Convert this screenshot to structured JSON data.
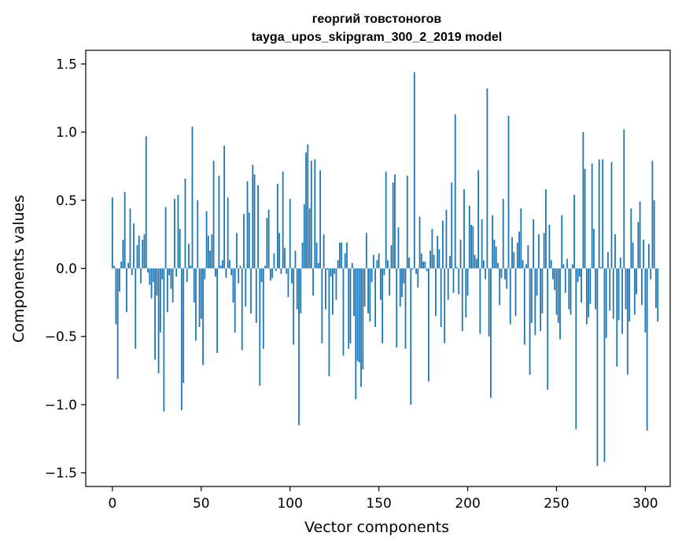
{
  "chart_data": {
    "type": "bar",
    "title": [
      "георгий товстоногов",
      "tayga_upos_skipgram_300_2_2019 model"
    ],
    "xlabel": "Vector components",
    "ylabel": "Components values",
    "xlim": [
      -15,
      314
    ],
    "ylim": [
      -1.6,
      1.6
    ],
    "xticks": [
      0,
      50,
      100,
      150,
      200,
      250,
      300
    ],
    "xtick_labels": [
      "0",
      "50",
      "100",
      "150",
      "200",
      "250",
      "300"
    ],
    "yticks": [
      -1.5,
      -1.0,
      -0.5,
      0.0,
      0.5,
      1.0,
      1.5
    ],
    "ytick_labels": [
      "−1.5",
      "−1.0",
      "−0.5",
      "0.0",
      "0.5",
      "1.0",
      "1.5"
    ],
    "bar_color": "#1f77b4",
    "values": [
      0.52,
      0.02,
      -0.41,
      -0.81,
      -0.17,
      0.05,
      0.21,
      0.56,
      -0.32,
      0.04,
      0.44,
      -0.05,
      0.33,
      -0.59,
      0.17,
      0.24,
      -0.11,
      0.21,
      0.25,
      0.97,
      -0.03,
      -0.12,
      -0.22,
      -0.1,
      -0.67,
      -0.2,
      -0.77,
      -0.47,
      -0.08,
      -1.05,
      0.45,
      -0.32,
      -0.05,
      -0.15,
      -0.25,
      0.51,
      -0.06,
      0.54,
      0.29,
      -1.04,
      -0.84,
      0.66,
      -0.1,
      0.18,
      0.02,
      1.04,
      -0.25,
      -0.53,
      0.5,
      -0.43,
      -0.37,
      -0.71,
      -0.08,
      0.42,
      0.24,
      0.13,
      0.25,
      0.79,
      -0.06,
      -0.62,
      0.68,
      0.02,
      0.06,
      0.9,
      -0.07,
      0.52,
      0.06,
      -0.05,
      -0.25,
      -0.47,
      0.26,
      -0.11,
      0.02,
      -0.6,
      0.4,
      -0.28,
      0.64,
      0.41,
      -0.33,
      0.76,
      0.69,
      -0.4,
      0.61,
      -0.86,
      -0.1,
      -0.59,
      0.02,
      0.37,
      0.43,
      -0.09,
      -0.07,
      0.11,
      -0.02,
      0.62,
      0.26,
      -0.04,
      0.71,
      0.15,
      -0.04,
      -0.21,
      0.51,
      -0.11,
      -0.56,
      0.13,
      -0.3,
      -1.15,
      -0.33,
      0.19,
      0.47,
      0.85,
      0.91,
      0.44,
      0.79,
      -0.2,
      0.8,
      0.19,
      0.04,
      0.72,
      -0.55,
      0.25,
      -0.3,
      -0.01,
      -0.79,
      -0.06,
      -0.34,
      -0.04,
      -0.23,
      0.06,
      0.19,
      0.19,
      -0.64,
      0.11,
      0.19,
      -0.59,
      -0.55,
      0.04,
      -0.35,
      -0.96,
      -0.68,
      -0.69,
      -0.87,
      -0.74,
      -0.28,
      0.26,
      -0.33,
      -0.39,
      -0.1,
      0.1,
      -0.43,
      0.06,
      0.11,
      -0.23,
      -0.55,
      -0.05,
      0.71,
      0.06,
      -0.2,
      0.17,
      0.63,
      0.69,
      -0.58,
      0.3,
      -0.28,
      -0.21,
      -0.11,
      -0.59,
      0.68,
      0.08,
      -1.0,
      -0.01,
      1.44,
      -0.04,
      -0.14,
      0.38,
      0.11,
      0.05,
      0.05,
      -0.02,
      -0.83,
      0.13,
      0.29,
      0.1,
      -0.35,
      0.24,
      0.14,
      -0.43,
      0.35,
      -0.55,
      0.43,
      -0.23,
      0.09,
      0.63,
      -0.18,
      1.13,
      0.01,
      -0.19,
      0.21,
      -0.46,
      0.58,
      -0.36,
      -0.2,
      0.46,
      0.32,
      0.31,
      0.1,
      0.07,
      0.72,
      -0.48,
      0.36,
      0.06,
      -0.08,
      1.32,
      -0.5,
      -0.95,
      0.39,
      0.21,
      0.16,
      0.04,
      -0.27,
      -0.07,
      0.51,
      -0.08,
      -0.15,
      1.12,
      -0.41,
      0.23,
      0.12,
      -0.35,
      0.19,
      0.27,
      0.44,
      0.06,
      -0.56,
      0.03,
      0.17,
      -0.78,
      -0.4,
      0.36,
      -0.49,
      -0.2,
      0.25,
      -0.46,
      -0.33,
      0.26,
      0.58,
      -0.89,
      0.32,
      0.06,
      -0.08,
      -0.16,
      -0.34,
      -0.4,
      -0.52,
      0.39,
      0.03,
      -0.18,
      0.07,
      -0.3,
      -0.34,
      0.03,
      0.54,
      -1.18,
      -0.1,
      -0.06,
      -0.25,
      1.0,
      0.73,
      -0.41,
      -0.36,
      -0.26,
      0.77,
      0.29,
      -0.3,
      -1.45,
      0.8,
      0.01,
      0.8,
      -1.42,
      -0.51,
      0.12,
      -0.31,
      0.78,
      -0.37,
      0.25,
      -0.72,
      -0.38,
      0.08,
      -0.48,
      1.02,
      -0.3,
      -0.78,
      -0.39,
      0.44,
      0.19,
      -0.34,
      -0.19,
      0.34,
      0.49,
      -0.27,
      0.21,
      -0.47,
      -1.19,
      0.18,
      -0.08,
      0.79,
      0.5,
      -0.29,
      -0.39
    ]
  }
}
